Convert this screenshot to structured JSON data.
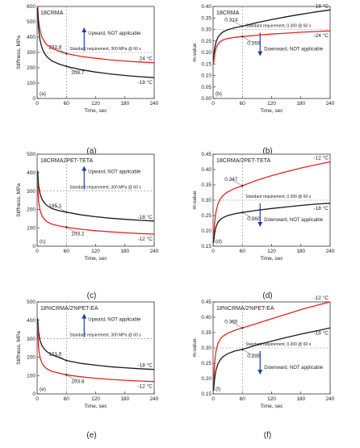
{
  "figure": {
    "panel_labels": [
      "(a)",
      "(b)",
      "(c)",
      "(d)",
      "(e)",
      "(f)"
    ]
  },
  "chart_data": [
    {
      "id": "a",
      "type": "line",
      "tag": "(a)",
      "title": "18CRMA",
      "xlabel": "Time, sec",
      "ylabel": "Stiffness, MPa",
      "xlim": [
        0,
        240
      ],
      "xticks": [
        0,
        60,
        120,
        180,
        240
      ],
      "ylim": [
        0,
        600
      ],
      "yticks": [
        0,
        100,
        200,
        300,
        400,
        500,
        600
      ],
      "requirement": {
        "y": 300,
        "x": 60,
        "label": "Standard requirement, 300 MPa @ 60 s"
      },
      "direction": {
        "text": "Upward, NOT applicable",
        "dir": "up"
      },
      "series": [
        {
          "name": "24 °C",
          "color": "#e8231c",
          "x": [
            1,
            3,
            6,
            10,
            15,
            20,
            30,
            45,
            60,
            90,
            120,
            150,
            180,
            210,
            240
          ],
          "y": [
            600,
            505,
            445,
            400,
            370,
            350,
            328,
            308,
            292.6,
            274,
            262,
            252,
            244,
            238,
            233
          ]
        },
        {
          "name": "-18 °C",
          "color": "#1a1a1a",
          "x": [
            1,
            3,
            6,
            10,
            15,
            20,
            30,
            45,
            60,
            90,
            120,
            150,
            180,
            210,
            240
          ],
          "y": [
            590,
            455,
            380,
            330,
            295,
            272,
            245,
            224,
            209.7,
            188,
            172,
            160,
            150,
            142,
            136
          ]
        }
      ],
      "annotations": [
        {
          "text": "292.6",
          "x": 60,
          "y": 292.6
        },
        {
          "text": "209.7",
          "x": 60,
          "y": 209.7
        }
      ]
    },
    {
      "id": "b",
      "type": "line",
      "tag": "(b)",
      "title": "18CRMA",
      "xlabel": "Time, sec",
      "ylabel": "m-value",
      "xlim": [
        0,
        240
      ],
      "xticks": [
        0,
        60,
        120,
        180,
        240
      ],
      "ylim": [
        0,
        0.4
      ],
      "yticks": [
        0,
        0.05,
        0.1,
        0.15,
        0.2,
        0.25,
        0.3,
        0.35,
        0.4
      ],
      "requirement": {
        "y": 0.3,
        "x": 60,
        "label": "Standard requirement, 0.300 @ 60 s"
      },
      "direction": {
        "text": "Downward, NOT applicable",
        "dir": "down"
      },
      "series": [
        {
          "name": "18 °C",
          "color": "#1a1a1a",
          "x": [
            1,
            3,
            6,
            10,
            15,
            20,
            30,
            45,
            60,
            90,
            120,
            150,
            180,
            210,
            240
          ],
          "y": [
            0.17,
            0.215,
            0.245,
            0.266,
            0.28,
            0.289,
            0.299,
            0.308,
            0.314,
            0.33,
            0.343,
            0.355,
            0.366,
            0.376,
            0.385
          ]
        },
        {
          "name": "-24 °C",
          "color": "#e8231c",
          "x": [
            1,
            3,
            6,
            10,
            15,
            20,
            30,
            45,
            60,
            90,
            120,
            150,
            180,
            210,
            240
          ],
          "y": [
            0.15,
            0.19,
            0.218,
            0.236,
            0.248,
            0.254,
            0.261,
            0.266,
            0.269,
            0.275,
            0.28,
            0.284,
            0.288,
            0.291,
            0.294
          ]
        }
      ],
      "annotations": [
        {
          "text": "0.314",
          "x": 60,
          "y": 0.314
        },
        {
          "text": "0.269",
          "x": 60,
          "y": 0.269
        }
      ]
    },
    {
      "id": "c",
      "type": "line",
      "tag": "(c)",
      "title": "18CRMA2PET-TETA",
      "xlabel": "Time, sec",
      "ylabel": "Stiffness, MPa",
      "xlim": [
        0,
        240
      ],
      "xticks": [
        0,
        60,
        120,
        180,
        240
      ],
      "ylim": [
        0,
        500
      ],
      "yticks": [
        0,
        100,
        200,
        300,
        400,
        500
      ],
      "requirement": {
        "y": 300,
        "x": 60,
        "label": "Standard requirement, 300 MPa @ 60 s"
      },
      "direction": {
        "text": "Upward, NOT applicable",
        "dir": "up"
      },
      "series": [
        {
          "name": "-18 °C",
          "color": "#1a1a1a",
          "x": [
            1,
            3,
            6,
            10,
            15,
            20,
            30,
            45,
            60,
            90,
            120,
            150,
            180,
            210,
            240
          ],
          "y": [
            410,
            330,
            285,
            255,
            235,
            222,
            205,
            193,
            185.1,
            170,
            160,
            152,
            146,
            141,
            137
          ]
        },
        {
          "name": "-12 °C",
          "color": "#e8231c",
          "x": [
            1,
            3,
            6,
            10,
            15,
            20,
            30,
            45,
            60,
            90,
            120,
            150,
            180,
            210,
            240
          ],
          "y": [
            350,
            245,
            195,
            165,
            145,
            133,
            120,
            110,
            103.2,
            92,
            84,
            78,
            73,
            69,
            66
          ]
        }
      ],
      "annotations": [
        {
          "text": "185.1",
          "x": 60,
          "y": 185.1
        },
        {
          "text": "103.2",
          "x": 60,
          "y": 103.2
        }
      ]
    },
    {
      "id": "d",
      "type": "line",
      "tag": "(d)",
      "title": "18CRMA/2PET-TETA",
      "xlabel": "Time, sec",
      "ylabel": "m-value",
      "xlim": [
        0,
        240
      ],
      "xticks": [
        0,
        60,
        120,
        180,
        240
      ],
      "ylim": [
        0.15,
        0.45
      ],
      "yticks": [
        0.15,
        0.2,
        0.25,
        0.3,
        0.35,
        0.4,
        0.45
      ],
      "requirement": {
        "y": 0.3,
        "x": 60,
        "label": "Standard requirement, 0.300 @ 60 s"
      },
      "direction": {
        "text": "Downward, NOT applicable",
        "dir": "down"
      },
      "series": [
        {
          "name": "-12 °C",
          "color": "#e8231c",
          "x": [
            1,
            3,
            6,
            10,
            15,
            20,
            30,
            45,
            60,
            90,
            120,
            150,
            180,
            210,
            240
          ],
          "y": [
            0.17,
            0.225,
            0.262,
            0.288,
            0.305,
            0.315,
            0.327,
            0.339,
            0.347,
            0.365,
            0.38,
            0.393,
            0.405,
            0.415,
            0.425
          ]
        },
        {
          "name": "-18 °C",
          "color": "#1a1a1a",
          "x": [
            1,
            3,
            6,
            10,
            15,
            20,
            30,
            45,
            60,
            90,
            120,
            150,
            180,
            210,
            240
          ],
          "y": [
            0.16,
            0.19,
            0.213,
            0.228,
            0.237,
            0.243,
            0.25,
            0.256,
            0.26,
            0.267,
            0.273,
            0.278,
            0.283,
            0.287,
            0.29
          ]
        }
      ],
      "annotations": [
        {
          "text": "0.347",
          "x": 60,
          "y": 0.347
        },
        {
          "text": "0.260",
          "x": 60,
          "y": 0.26
        }
      ]
    },
    {
      "id": "e",
      "type": "line",
      "tag": "(e)",
      "title": "18%CRMA/2%PET-EA",
      "xlabel": "Time, sec",
      "ylabel": "Stiffness, MPa",
      "xlim": [
        0,
        240
      ],
      "xticks": [
        0,
        60,
        120,
        180,
        240
      ],
      "ylim": [
        0,
        500
      ],
      "yticks": [
        0,
        100,
        200,
        300,
        400,
        500
      ],
      "requirement": {
        "y": 300,
        "x": 60,
        "label": "Standard requirement, 300 MPa @ 60 s"
      },
      "direction": {
        "text": "Upward, NOT applicable",
        "dir": "up"
      },
      "series": [
        {
          "name": "-18 °C",
          "color": "#1a1a1a",
          "x": [
            1,
            3,
            6,
            10,
            15,
            20,
            30,
            45,
            60,
            90,
            120,
            150,
            180,
            210,
            240
          ],
          "y": [
            410,
            335,
            290,
            262,
            243,
            230,
            212,
            198,
            181.6,
            166,
            156,
            148,
            142,
            137,
            133
          ]
        },
        {
          "name": "-12 °C",
          "color": "#e8231c",
          "x": [
            1,
            3,
            6,
            10,
            15,
            20,
            30,
            45,
            60,
            90,
            120,
            150,
            180,
            210,
            240
          ],
          "y": [
            360,
            250,
            198,
            168,
            148,
            136,
            123,
            113,
            103.8,
            93,
            85,
            79,
            74,
            70,
            67
          ]
        }
      ],
      "annotations": [
        {
          "text": "181.6",
          "x": 60,
          "y": 181.6
        },
        {
          "text": "103.8",
          "x": 60,
          "y": 103.8
        }
      ]
    },
    {
      "id": "f",
      "type": "line",
      "tag": "(f)",
      "title": "18%CRMA/2%PET-EA",
      "xlabel": "Time, sec",
      "ylabel": "m-value",
      "xlim": [
        0,
        240
      ],
      "xticks": [
        0,
        60,
        120,
        180,
        240
      ],
      "ylim": [
        0.15,
        0.45
      ],
      "yticks": [
        0.15,
        0.2,
        0.25,
        0.3,
        0.35,
        0.4,
        0.45
      ],
      "requirement": {
        "y": 0.3,
        "x": 60,
        "label": "Standard requirement, 0.300 @ 60 s"
      },
      "direction": {
        "text": "Downward, NOT applicable",
        "dir": "down"
      },
      "series": [
        {
          "name": "-12 °C",
          "color": "#e8231c",
          "x": [
            1,
            3,
            6,
            10,
            15,
            20,
            30,
            45,
            60,
            90,
            120,
            150,
            180,
            210,
            240
          ],
          "y": [
            0.18,
            0.25,
            0.29,
            0.315,
            0.33,
            0.338,
            0.348,
            0.358,
            0.365,
            0.38,
            0.395,
            0.41,
            0.425,
            0.438,
            0.45
          ]
        },
        {
          "name": "-18 °C",
          "color": "#1a1a1a",
          "x": [
            1,
            3,
            6,
            10,
            15,
            20,
            30,
            45,
            60,
            90,
            120,
            150,
            180,
            210,
            240
          ],
          "y": [
            0.16,
            0.2,
            0.228,
            0.248,
            0.262,
            0.271,
            0.281,
            0.29,
            0.295,
            0.31,
            0.322,
            0.334,
            0.345,
            0.355,
            0.365
          ]
        }
      ],
      "annotations": [
        {
          "text": "0.365",
          "x": 60,
          "y": 0.365
        },
        {
          "text": "0.295",
          "x": 60,
          "y": 0.295
        }
      ]
    }
  ]
}
